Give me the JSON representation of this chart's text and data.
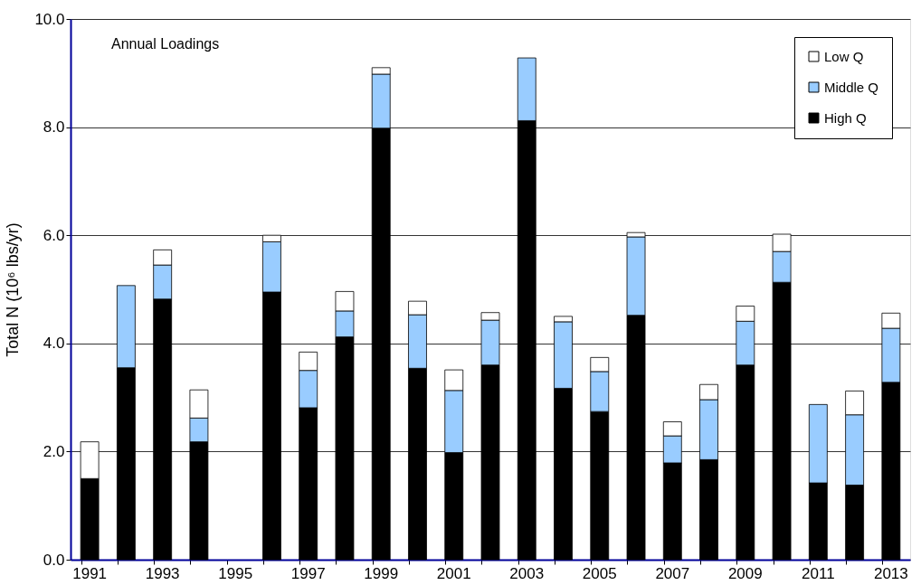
{
  "chart_data": {
    "type": "bar",
    "stacked": true,
    "ylabel": "Total N (10⁶ lbs/yr)",
    "annotations": [
      "Annual Loadings"
    ],
    "categories": [
      "1991",
      null,
      "1993",
      null,
      "1995",
      null,
      "1997",
      null,
      "1999",
      null,
      "2001",
      null,
      "2003",
      null,
      "2005",
      null,
      "2007",
      null,
      "2009",
      null,
      "2011",
      null,
      "2013"
    ],
    "series": [
      {
        "name": "High Q",
        "color": "#000000",
        "values": [
          1.5,
          3.55,
          4.82,
          2.18,
          null,
          4.95,
          2.81,
          4.12,
          7.98,
          3.54,
          1.98,
          3.6,
          8.12,
          3.17,
          2.74,
          4.52,
          1.79,
          1.85,
          3.6,
          5.13,
          1.42,
          1.38,
          3.28
        ]
      },
      {
        "name": "Middle Q",
        "color": "#99ccff",
        "values": [
          0,
          1.52,
          0.63,
          0.44,
          null,
          0.93,
          0.69,
          0.48,
          1.0,
          0.99,
          1.15,
          0.83,
          1.16,
          1.23,
          0.74,
          1.45,
          0.5,
          1.11,
          0.81,
          0.57,
          1.45,
          1.3,
          1.0
        ]
      },
      {
        "name": "Low Q",
        "color": "#ffffff",
        "values": [
          0.68,
          0,
          0.28,
          0.52,
          null,
          0.12,
          0.34,
          0.36,
          0.12,
          0.25,
          0.38,
          0.14,
          0,
          0.1,
          0.26,
          0.08,
          0.26,
          0.28,
          0.28,
          0.32,
          0,
          0.44,
          0.28
        ]
      }
    ],
    "ylim": [
      0,
      10
    ],
    "yticks": [
      {
        "value": 0,
        "label": "0.0"
      },
      {
        "value": 2,
        "label": "2.0"
      },
      {
        "value": 4,
        "label": "4.0"
      },
      {
        "value": 6,
        "label": "6.0"
      },
      {
        "value": 8,
        "label": "8.0"
      },
      {
        "value": 10,
        "label": "10.0"
      }
    ],
    "grid": "y",
    "legend": "top right"
  }
}
